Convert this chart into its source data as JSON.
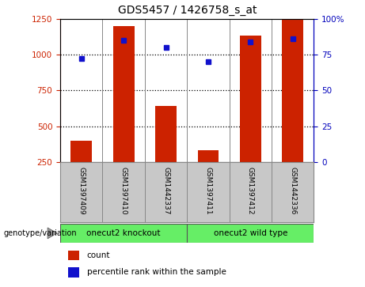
{
  "title": "GDS5457 / 1426758_s_at",
  "samples": [
    "GSM1397409",
    "GSM1397410",
    "GSM1442337",
    "GSM1397411",
    "GSM1397412",
    "GSM1442336"
  ],
  "counts": [
    400,
    1200,
    640,
    335,
    1130,
    1240
  ],
  "percentile_ranks": [
    72,
    85,
    80,
    70,
    84,
    86
  ],
  "bar_color": "#cc2200",
  "dot_color": "#1111cc",
  "groups": [
    {
      "label": "onecut2 knockout",
      "color": "#66ee66"
    },
    {
      "label": "onecut2 wild type",
      "color": "#66ee66"
    }
  ],
  "group_label": "genotype/variation",
  "left_ylim": [
    250,
    1250
  ],
  "left_yticks": [
    250,
    500,
    750,
    1000,
    1250
  ],
  "right_ylim": [
    0,
    100
  ],
  "right_yticks": [
    0,
    25,
    50,
    75,
    100
  ],
  "right_yticklabels": [
    "0",
    "25",
    "50",
    "75",
    "100%"
  ],
  "left_ycolor": "#cc2200",
  "right_ycolor": "#0000bb",
  "legend_count_label": "count",
  "legend_percentile_label": "percentile rank within the sample",
  "bg_color": "#ffffff",
  "plot_bg_color": "#ffffff",
  "grid_color": "#000000",
  "bar_width": 0.5,
  "sample_bg_color": "#c8c8c8",
  "title_fontsize": 10
}
